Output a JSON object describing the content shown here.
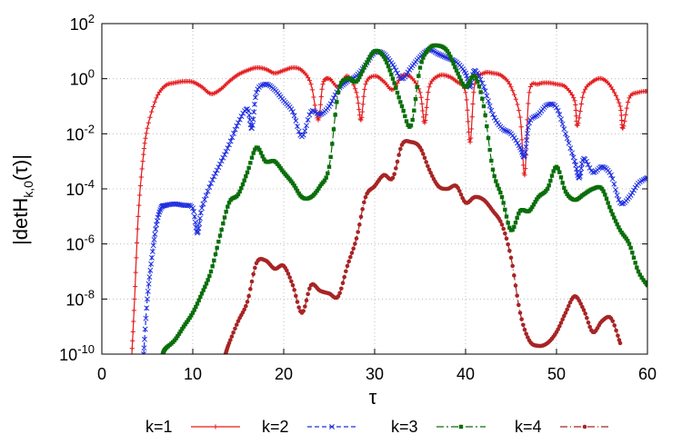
{
  "chart_data": {
    "type": "line",
    "ylabel_prefix": "|detH",
    "ylabel_sub": "k,0",
    "ylabel_suffix": "(τ)|",
    "xlabel": "τ",
    "xlim": [
      0,
      60
    ],
    "ylim_exp": [
      -10,
      2
    ],
    "yscale": "log",
    "grid": true,
    "legend_position": "bottom",
    "x_ticks": [
      "0",
      "10",
      "20",
      "30",
      "40",
      "50",
      "60"
    ],
    "y_ticks": [
      {
        "base": "10",
        "exp": "2"
      },
      {
        "base": "10",
        "exp": "0"
      },
      {
        "base": "10",
        "exp": "-2"
      },
      {
        "base": "10",
        "exp": "-4"
      },
      {
        "base": "10",
        "exp": "-6"
      },
      {
        "base": "10",
        "exp": "-8"
      },
      {
        "base": "10",
        "exp": "-10"
      }
    ],
    "series": [
      {
        "name": "k=1",
        "color": "#e41a1c",
        "dash": "",
        "marker": "plus",
        "points": [
          [
            3.3,
            -10
          ],
          [
            3.6,
            -8
          ],
          [
            4,
            -5
          ],
          [
            4.5,
            -3
          ],
          [
            5,
            -1.8
          ],
          [
            6,
            -0.7
          ],
          [
            7,
            -0.25
          ],
          [
            8,
            -0.15
          ],
          [
            9,
            -0.1
          ],
          [
            10,
            -0.12
          ],
          [
            11,
            -0.3
          ],
          [
            12,
            -0.55
          ],
          [
            13,
            -0.4
          ],
          [
            14,
            -0.1
          ],
          [
            15,
            0.15
          ],
          [
            16,
            0.3
          ],
          [
            17,
            0.4
          ],
          [
            18,
            0.35
          ],
          [
            19,
            0.2
          ],
          [
            20,
            0.3
          ],
          [
            21,
            0.4
          ],
          [
            22,
            0.3
          ],
          [
            23,
            -0.2
          ],
          [
            23.8,
            -1.5
          ],
          [
            24.3,
            -0.2
          ],
          [
            25,
            0
          ],
          [
            26,
            -0.3
          ],
          [
            27,
            0.1
          ],
          [
            28,
            -0.5
          ],
          [
            28.5,
            -1.5
          ],
          [
            29,
            -0.2
          ],
          [
            30,
            0.1
          ],
          [
            31,
            -0.1
          ],
          [
            32,
            -0.4
          ],
          [
            33,
            0.1
          ],
          [
            34,
            0.05
          ],
          [
            35,
            -0.5
          ],
          [
            35.5,
            -1.6
          ],
          [
            36,
            -0.3
          ],
          [
            37,
            0.1
          ],
          [
            38,
            0.1
          ],
          [
            39,
            -0.1
          ],
          [
            40,
            -0.5
          ],
          [
            40.5,
            -2.3
          ],
          [
            41,
            -0.2
          ],
          [
            42,
            0.2
          ],
          [
            43,
            0.2
          ],
          [
            44,
            0.1
          ],
          [
            45,
            -0.3
          ],
          [
            46,
            -1.4
          ],
          [
            46.5,
            -3.5
          ],
          [
            47,
            -0.5
          ],
          [
            48,
            -0.2
          ],
          [
            49,
            -0.15
          ],
          [
            50,
            -0.2
          ],
          [
            51,
            -0.3
          ],
          [
            52,
            -0.8
          ],
          [
            52.3,
            -1.7
          ],
          [
            53,
            -0.5
          ],
          [
            54,
            -0.1
          ],
          [
            55,
            0
          ],
          [
            56,
            -0.3
          ],
          [
            57,
            -1
          ],
          [
            57.3,
            -1.8
          ],
          [
            58,
            -0.7
          ],
          [
            59,
            -0.5
          ],
          [
            60,
            -0.45
          ]
        ]
      },
      {
        "name": "k=2",
        "color": "#1f2fe0",
        "dash": "5,3",
        "marker": "x",
        "points": [
          [
            4.6,
            -10
          ],
          [
            5,
            -8
          ],
          [
            5.5,
            -6.5
          ],
          [
            6,
            -5.3
          ],
          [
            6.5,
            -4.7
          ],
          [
            7,
            -4.6
          ],
          [
            8,
            -4.55
          ],
          [
            9,
            -4.6
          ],
          [
            10,
            -4.7
          ],
          [
            10.5,
            -5.6
          ],
          [
            11,
            -4.7
          ],
          [
            12,
            -3.8
          ],
          [
            13,
            -3.1
          ],
          [
            14,
            -2.4
          ],
          [
            15,
            -1.6
          ],
          [
            16,
            -1.1
          ],
          [
            16.5,
            -1.8
          ],
          [
            17,
            -0.5
          ],
          [
            18,
            -0.2
          ],
          [
            19,
            -0.4
          ],
          [
            20,
            -0.8
          ],
          [
            21,
            -1.2
          ],
          [
            22,
            -2.1
          ],
          [
            23,
            -1.2
          ],
          [
            24,
            -1.3
          ],
          [
            25,
            -1
          ],
          [
            26,
            -0.4
          ],
          [
            27,
            -0.1
          ],
          [
            28,
            0.1
          ],
          [
            29,
            0.5
          ],
          [
            30,
            0.95
          ],
          [
            31,
            0.9
          ],
          [
            32,
            0.5
          ],
          [
            33,
            0
          ],
          [
            34,
            0.4
          ],
          [
            35,
            0.8
          ],
          [
            36,
            1.05
          ],
          [
            37,
            0.9
          ],
          [
            38,
            0.75
          ],
          [
            39,
            0.6
          ],
          [
            40,
            0.2
          ],
          [
            40.5,
            -0.3
          ],
          [
            41,
            0.3
          ],
          [
            42,
            -0.3
          ],
          [
            43,
            -1.3
          ],
          [
            44,
            -1.8
          ],
          [
            45,
            -2
          ],
          [
            46,
            -2.5
          ],
          [
            46.5,
            -2.8
          ],
          [
            47,
            -1.6
          ],
          [
            48,
            -1.3
          ],
          [
            49,
            -0.95
          ],
          [
            50,
            -1.05
          ],
          [
            51,
            -2
          ],
          [
            52,
            -3
          ],
          [
            52.5,
            -3.6
          ],
          [
            53,
            -2.9
          ],
          [
            54,
            -3.4
          ],
          [
            55,
            -3.2
          ],
          [
            56,
            -3.5
          ],
          [
            57,
            -4.5
          ],
          [
            58,
            -4.3
          ],
          [
            59,
            -3.8
          ],
          [
            60,
            -3.6
          ]
        ]
      },
      {
        "name": "k=3",
        "color": "#0a6e0a",
        "dash": "8,3,2,3",
        "marker": "square",
        "points": [
          [
            6.7,
            -10
          ],
          [
            7,
            -9.8
          ],
          [
            8,
            -9.5
          ],
          [
            9,
            -9.0
          ],
          [
            10,
            -8.5
          ],
          [
            11,
            -7.8
          ],
          [
            12,
            -7
          ],
          [
            13,
            -5.7
          ],
          [
            14,
            -4.5
          ],
          [
            15,
            -4.2
          ],
          [
            16,
            -3.4
          ],
          [
            17,
            -2.5
          ],
          [
            18,
            -3
          ],
          [
            19,
            -3
          ],
          [
            20,
            -3.4
          ],
          [
            21,
            -3.8
          ],
          [
            22,
            -4.3
          ],
          [
            23,
            -4.3
          ],
          [
            24,
            -3.9
          ],
          [
            25,
            -3.2
          ],
          [
            26,
            -0.5
          ],
          [
            27,
            0
          ],
          [
            28,
            -0.1
          ],
          [
            29,
            0.5
          ],
          [
            30,
            1.0
          ],
          [
            31,
            0.8
          ],
          [
            32,
            0
          ],
          [
            33,
            -1
          ],
          [
            34,
            -1.7
          ],
          [
            35,
            0.4
          ],
          [
            36,
            1.1
          ],
          [
            37,
            1.2
          ],
          [
            38,
            1
          ],
          [
            39,
            0.3
          ],
          [
            40,
            -0.3
          ],
          [
            41,
            0.1
          ],
          [
            42,
            -1
          ],
          [
            43,
            -3.3
          ],
          [
            44,
            -4.3
          ],
          [
            45,
            -5.5
          ],
          [
            46,
            -4.8
          ],
          [
            47,
            -4.8
          ],
          [
            48,
            -4.3
          ],
          [
            49,
            -4
          ],
          [
            50,
            -3.2
          ],
          [
            51,
            -4.1
          ],
          [
            52,
            -4.4
          ],
          [
            53,
            -4.2
          ],
          [
            54,
            -4
          ],
          [
            55,
            -4
          ],
          [
            56,
            -4.8
          ],
          [
            57,
            -5.5
          ],
          [
            58,
            -6.0
          ],
          [
            59,
            -7.0
          ],
          [
            60,
            -7.5
          ]
        ]
      },
      {
        "name": "k=4",
        "color": "#a82424",
        "dash": "8,3,1,3",
        "marker": "circle",
        "points": [
          [
            13.6,
            -10
          ],
          [
            14,
            -9.6
          ],
          [
            15,
            -8.8
          ],
          [
            16,
            -8.1
          ],
          [
            17,
            -6.7
          ],
          [
            18,
            -6.6
          ],
          [
            19,
            -6.9
          ],
          [
            20,
            -6.8
          ],
          [
            21,
            -7.5
          ],
          [
            22,
            -8.5
          ],
          [
            23,
            -7.5
          ],
          [
            24,
            -7.7
          ],
          [
            25,
            -7.8
          ],
          [
            26,
            -7.9
          ],
          [
            27,
            -6.8
          ],
          [
            28,
            -5.8
          ],
          [
            29,
            -4.3
          ],
          [
            30,
            -3.9
          ],
          [
            31,
            -3.5
          ],
          [
            32,
            -3.6
          ],
          [
            33,
            -2.4
          ],
          [
            34,
            -2.3
          ],
          [
            35,
            -2.5
          ],
          [
            36,
            -3.3
          ],
          [
            37,
            -3.9
          ],
          [
            38,
            -4
          ],
          [
            39,
            -3.9
          ],
          [
            40,
            -4.5
          ],
          [
            41,
            -4.3
          ],
          [
            42,
            -4.4
          ],
          [
            43,
            -4.8
          ],
          [
            44,
            -5.3
          ],
          [
            45,
            -6.5
          ],
          [
            46,
            -8.5
          ],
          [
            47,
            -9.5
          ],
          [
            48,
            -9.7
          ],
          [
            49,
            -9.6
          ],
          [
            50,
            -9.2
          ],
          [
            51,
            -8.5
          ],
          [
            52,
            -7.9
          ],
          [
            53,
            -8.4
          ],
          [
            54,
            -9.2
          ],
          [
            55,
            -8.8
          ],
          [
            56,
            -8.7
          ],
          [
            57,
            -9.6
          ]
        ]
      }
    ]
  }
}
